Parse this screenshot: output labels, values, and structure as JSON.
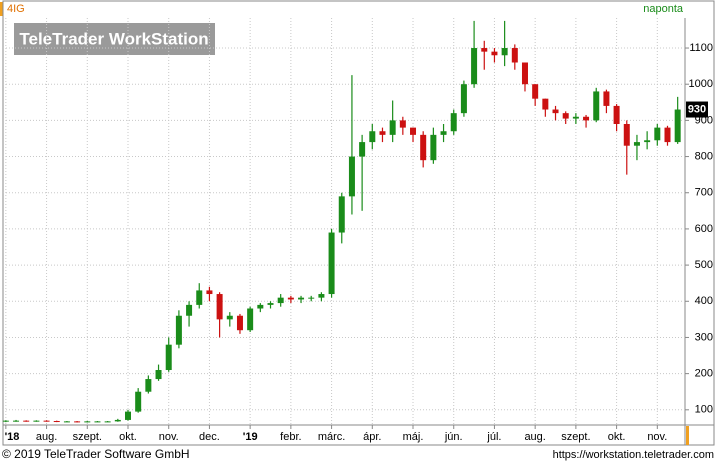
{
  "chart_data": {
    "type": "candlestick",
    "title": "4IG",
    "interval": "naponta",
    "watermark": "TeleTrader WorkStation",
    "footer_left": "© 2019 TeleTrader Software GmbH",
    "footer_right": "https://workstation.teletrader.com",
    "last_price": 930,
    "up_color": "#1a8c1a",
    "down_color": "#cc1111",
    "grid": true,
    "xlim": [
      -0.07,
      16.68
    ],
    "ylim": [
      58,
      1183
    ],
    "yticks": [
      100,
      200,
      300,
      400,
      500,
      600,
      700,
      800,
      900,
      1000,
      1100
    ],
    "xticks": [
      {
        "value": 0,
        "label": "'18"
      },
      {
        "value": 1,
        "label": "aug."
      },
      {
        "value": 2,
        "label": "szept."
      },
      {
        "value": 3,
        "label": "okt."
      },
      {
        "value": 4,
        "label": "nov."
      },
      {
        "value": 5,
        "label": "dec."
      },
      {
        "value": 6,
        "label": "'19"
      },
      {
        "value": 7,
        "label": "febr."
      },
      {
        "value": 8,
        "label": "márc."
      },
      {
        "value": 9,
        "label": "ápr."
      },
      {
        "value": 10,
        "label": "máj."
      },
      {
        "value": 11,
        "label": "jún."
      },
      {
        "value": 12,
        "label": "júl."
      },
      {
        "value": 13,
        "label": "aug."
      },
      {
        "value": 14,
        "label": "szept."
      },
      {
        "value": 15,
        "label": "okt."
      },
      {
        "value": 16,
        "label": "nov."
      }
    ],
    "x": [
      0,
      0.25,
      0.5,
      0.75,
      1,
      1.25,
      1.5,
      1.75,
      2,
      2.25,
      2.5,
      2.75,
      3,
      3.25,
      3.5,
      3.75,
      4,
      4.25,
      4.5,
      4.75,
      5,
      5.25,
      5.5,
      5.75,
      6,
      6.25,
      6.5,
      6.75,
      7,
      7.25,
      7.5,
      7.75,
      8,
      8.25,
      8.5,
      8.75,
      9,
      9.25,
      9.5,
      9.75,
      10,
      10.25,
      10.5,
      10.75,
      11,
      11.25,
      11.5,
      11.75,
      12,
      12.25,
      12.5,
      12.75,
      13,
      13.25,
      13.5,
      13.75,
      14,
      14.25,
      14.5,
      14.75,
      15,
      15.25,
      15.5,
      15.75,
      16,
      16.25,
      16.5
    ],
    "open": [
      68,
      70,
      70,
      69,
      70,
      69,
      68,
      68,
      67,
      68,
      68,
      68,
      72,
      95,
      150,
      185,
      210,
      280,
      360,
      390,
      430,
      420,
      350,
      360,
      320,
      380,
      390,
      395,
      410,
      405,
      410,
      410,
      420,
      590,
      690,
      800,
      840,
      870,
      860,
      900,
      880,
      860,
      790,
      860,
      870,
      920,
      1000,
      1100,
      1090,
      1080,
      1100,
      1060,
      1000,
      960,
      930,
      920,
      905,
      910,
      900,
      980,
      940,
      890,
      830,
      840,
      845,
      880,
      840
    ],
    "high": [
      71,
      72,
      71,
      71,
      71,
      70,
      69,
      69,
      69,
      69,
      69,
      75,
      100,
      160,
      195,
      225,
      300,
      375,
      400,
      450,
      440,
      425,
      370,
      365,
      385,
      395,
      400,
      420,
      415,
      415,
      415,
      425,
      600,
      700,
      1025,
      860,
      890,
      880,
      955,
      910,
      880,
      870,
      880,
      890,
      930,
      1010,
      1175,
      1120,
      1100,
      1175,
      1110,
      1060,
      1000,
      960,
      940,
      925,
      920,
      915,
      990,
      985,
      945,
      900,
      860,
      870,
      890,
      885,
      965
    ],
    "low": [
      66,
      67,
      67,
      67,
      67,
      66,
      66,
      65,
      65,
      66,
      66,
      67,
      70,
      92,
      145,
      180,
      205,
      270,
      330,
      380,
      400,
      300,
      330,
      310,
      315,
      370,
      380,
      385,
      395,
      395,
      400,
      400,
      410,
      560,
      640,
      650,
      820,
      840,
      840,
      860,
      840,
      770,
      780,
      840,
      860,
      910,
      990,
      1040,
      1060,
      1050,
      1040,
      980,
      940,
      910,
      900,
      890,
      890,
      880,
      895,
      920,
      870,
      750,
      790,
      820,
      830,
      830,
      835
    ],
    "close": [
      70,
      70,
      69,
      70,
      69,
      68,
      68,
      67,
      68,
      68,
      68,
      72,
      95,
      150,
      185,
      210,
      280,
      360,
      390,
      430,
      420,
      350,
      360,
      320,
      380,
      390,
      395,
      410,
      405,
      410,
      410,
      420,
      590,
      690,
      800,
      840,
      870,
      860,
      900,
      880,
      860,
      790,
      860,
      870,
      920,
      1000,
      1100,
      1090,
      1080,
      1100,
      1060,
      1000,
      960,
      930,
      920,
      905,
      910,
      900,
      980,
      940,
      890,
      830,
      840,
      845,
      880,
      840,
      930
    ]
  }
}
